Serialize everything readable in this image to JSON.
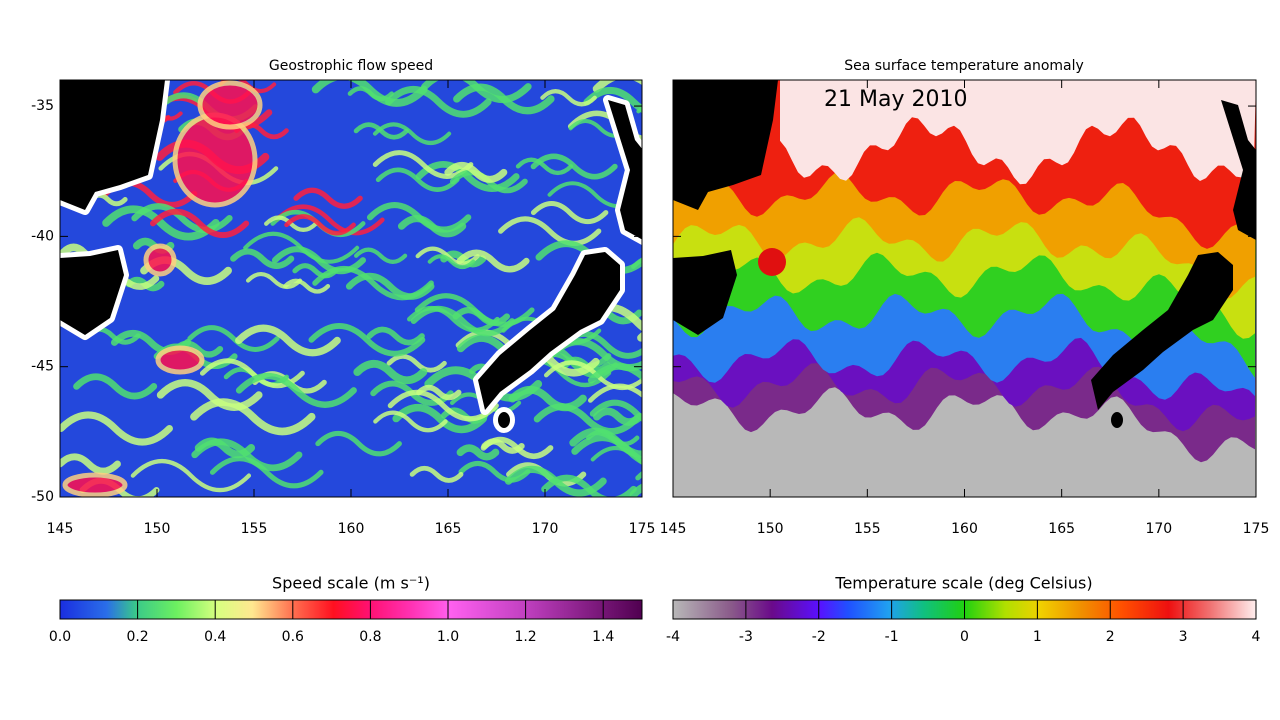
{
  "panels": [
    {
      "title": "Geostrophic flow speed",
      "xlim": [
        145,
        175
      ],
      "ylim": [
        -50,
        -34
      ],
      "xticks": [
        145,
        150,
        155,
        160,
        165,
        170,
        175
      ],
      "yticks": [
        -35,
        -40,
        -45,
        -50
      ]
    },
    {
      "title": "Sea surface temperature anomaly",
      "date": "21 May 2010",
      "xlim": [
        145,
        175
      ],
      "ylim": [
        -50,
        -34
      ],
      "xticks": [
        145,
        150,
        155,
        160,
        165,
        170,
        175
      ],
      "yticks": [
        -35,
        -40,
        -45,
        -50
      ]
    }
  ],
  "colorbars": [
    {
      "title": "Speed scale (m s⁻¹)",
      "lim": [
        0,
        1.5
      ],
      "ticks": [
        {
          "value": 0,
          "label": "0.0"
        },
        {
          "value": 0.2,
          "label": "0.2"
        },
        {
          "value": 0.4,
          "label": "0.4"
        },
        {
          "value": 0.6,
          "label": "0.6"
        },
        {
          "value": 0.8,
          "label": "0.8"
        },
        {
          "value": 1,
          "label": "1.0"
        },
        {
          "value": 1.2,
          "label": "1.2"
        },
        {
          "value": 1.4,
          "label": "1.4"
        }
      ]
    },
    {
      "title": "Temperature scale (deg Celsius)",
      "lim": [
        -4,
        4
      ],
      "ticks": [
        -4,
        -3,
        -2,
        -1,
        0,
        1,
        2,
        3,
        4
      ]
    }
  ]
}
